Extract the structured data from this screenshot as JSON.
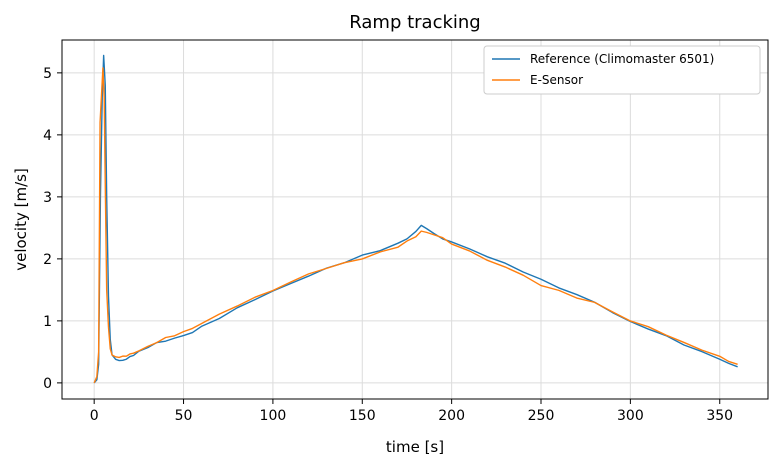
{
  "chart_data": {
    "type": "line",
    "title": "Ramp tracking",
    "xlabel": "time [s]",
    "ylabel": "velocity [m/s]",
    "xlim": [
      -18,
      377
    ],
    "ylim": [
      -0.26,
      5.53
    ],
    "xticks": [
      0,
      50,
      100,
      150,
      200,
      250,
      300,
      350
    ],
    "yticks": [
      0,
      1,
      2,
      3,
      4,
      5
    ],
    "grid": true,
    "legend_position": "top-right",
    "series": [
      {
        "name": "Reference (Climomaster 6501)",
        "color": "#1f77b4",
        "x": [
          0,
          1.5,
          2.5,
          3.5,
          4.5,
          5.3,
          6.2,
          7,
          8,
          9,
          10,
          12,
          14,
          16,
          18,
          20,
          22,
          25,
          30,
          35,
          40,
          45,
          50,
          55,
          60,
          70,
          80,
          90,
          100,
          110,
          120,
          130,
          140,
          150,
          160,
          170,
          175,
          180,
          183,
          186,
          190,
          195,
          200,
          210,
          220,
          230,
          240,
          250,
          260,
          270,
          280,
          290,
          300,
          310,
          320,
          330,
          340,
          350,
          355,
          360
        ],
        "y": [
          0,
          0.05,
          0.3,
          3.0,
          4.6,
          5.28,
          4.8,
          3.0,
          1.4,
          0.7,
          0.45,
          0.38,
          0.36,
          0.37,
          0.38,
          0.42,
          0.45,
          0.5,
          0.58,
          0.64,
          0.68,
          0.72,
          0.76,
          0.82,
          0.9,
          1.05,
          1.2,
          1.35,
          1.48,
          1.6,
          1.73,
          1.84,
          1.95,
          2.05,
          2.14,
          2.25,
          2.32,
          2.45,
          2.53,
          2.5,
          2.4,
          2.33,
          2.27,
          2.16,
          2.04,
          1.92,
          1.8,
          1.66,
          1.54,
          1.42,
          1.3,
          1.14,
          0.98,
          0.88,
          0.75,
          0.62,
          0.5,
          0.38,
          0.32,
          0.25
        ]
      },
      {
        "name": "E-Sensor",
        "color": "#ff7f0e",
        "x": [
          0,
          1.5,
          2.5,
          3.3,
          4.2,
          4.9,
          5.6,
          6.3,
          7,
          8,
          9,
          10,
          12,
          14,
          16,
          18,
          20,
          22,
          25,
          30,
          35,
          40,
          45,
          50,
          55,
          60,
          70,
          80,
          90,
          100,
          110,
          120,
          130,
          140,
          150,
          160,
          170,
          175,
          180,
          183,
          186,
          190,
          195,
          200,
          210,
          220,
          230,
          240,
          250,
          260,
          270,
          280,
          290,
          300,
          310,
          320,
          330,
          340,
          350,
          355,
          360
        ],
        "y": [
          0,
          0.1,
          0.5,
          4.2,
          4.7,
          5.08,
          4.6,
          3.0,
          1.5,
          0.9,
          0.55,
          0.45,
          0.42,
          0.41,
          0.42,
          0.44,
          0.46,
          0.48,
          0.52,
          0.58,
          0.66,
          0.72,
          0.77,
          0.82,
          0.88,
          0.96,
          1.1,
          1.25,
          1.37,
          1.5,
          1.62,
          1.76,
          1.85,
          1.93,
          2.01,
          2.1,
          2.2,
          2.28,
          2.36,
          2.45,
          2.42,
          2.4,
          2.33,
          2.25,
          2.12,
          1.98,
          1.87,
          1.73,
          1.58,
          1.48,
          1.38,
          1.29,
          1.15,
          1.0,
          0.9,
          0.78,
          0.64,
          0.54,
          0.42,
          0.35,
          0.3
        ]
      }
    ]
  }
}
